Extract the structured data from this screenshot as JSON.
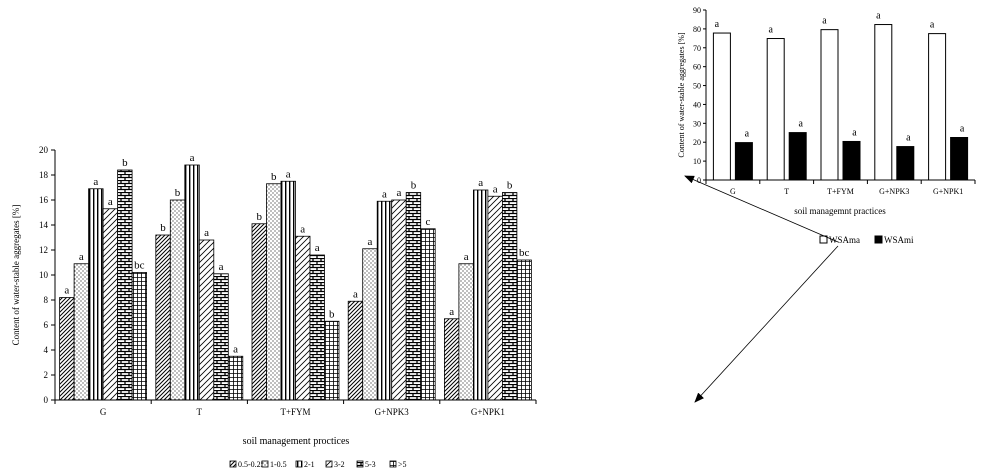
{
  "chart_data": [
    {
      "type": "bar",
      "title": "",
      "xlabel": "soil management proctices",
      "ylabel": "Content of water-stable aggregates [%]",
      "ylim": [
        0,
        20
      ],
      "yticks": [
        "0",
        "2",
        "4",
        "6",
        "8",
        "10",
        "12",
        "14",
        "16",
        "18",
        "20"
      ],
      "grid": false,
      "legend_position": "bottom",
      "categories": [
        "G",
        "T",
        "T+FYM",
        "G+NPK3",
        "G+NPK1"
      ],
      "series": [
        {
          "name": "0.5-0.25",
          "values": [
            8.2,
            13.2,
            14.1,
            7.9,
            6.5
          ],
          "labels": [
            "a",
            "b",
            "b",
            "a",
            "a"
          ],
          "pattern": "diag",
          "color": "#ffffff"
        },
        {
          "name": "1-0.5",
          "values": [
            10.9,
            16.0,
            17.3,
            12.1,
            10.9
          ],
          "labels": [
            "a",
            "b",
            "b",
            "a",
            "a"
          ],
          "pattern": "dots",
          "color": "#ffffff"
        },
        {
          "name": "2-1",
          "values": [
            16.9,
            18.8,
            17.5,
            15.9,
            16.8
          ],
          "labels": [
            "a",
            "a",
            "a",
            "a",
            "a"
          ],
          "pattern": "vlines",
          "color": "#ffffff"
        },
        {
          "name": "3-2",
          "values": [
            15.3,
            12.8,
            13.1,
            16.0,
            16.3
          ],
          "labels": [
            "a",
            "a",
            "a",
            "a",
            "a"
          ],
          "pattern": "wdiag",
          "color": "#ffffff"
        },
        {
          "name": "5-3",
          "values": [
            18.4,
            10.1,
            11.6,
            16.6,
            16.6
          ],
          "labels": [
            "b",
            "a",
            "a",
            "b",
            "b"
          ],
          "pattern": "brick",
          "color": "#ffffff"
        },
        {
          "name": ">5",
          "values": [
            10.2,
            3.5,
            6.3,
            13.7,
            11.2
          ],
          "labels": [
            "bc",
            "a",
            "b",
            "c",
            "bc"
          ],
          "pattern": "grid",
          "color": "#ffffff"
        }
      ]
    },
    {
      "type": "bar",
      "title": "",
      "xlabel": "soil managemnt practices",
      "ylabel": "Content of water-stable aggregates [%]",
      "ylim": [
        0,
        90
      ],
      "yticks": [
        "0",
        "10",
        "20",
        "30",
        "40",
        "50",
        "60",
        "70",
        "80",
        "90"
      ],
      "grid": false,
      "legend_position": "bottom",
      "categories": [
        "G",
        "T",
        "T+FYM",
        "G+NPK3",
        "G+NPK1"
      ],
      "series": [
        {
          "name": "WSAma",
          "values": [
            77.8,
            74.9,
            79.6,
            82.3,
            77.5
          ],
          "labels": [
            "a",
            "a",
            "a",
            "a",
            "a"
          ],
          "color": "#ffffff"
        },
        {
          "name": "WSAmi",
          "values": [
            19.8,
            25.1,
            20.4,
            17.7,
            22.5
          ],
          "labels": [
            "a",
            "a",
            "a",
            "a",
            "a"
          ],
          "color": "#000000"
        }
      ]
    }
  ]
}
